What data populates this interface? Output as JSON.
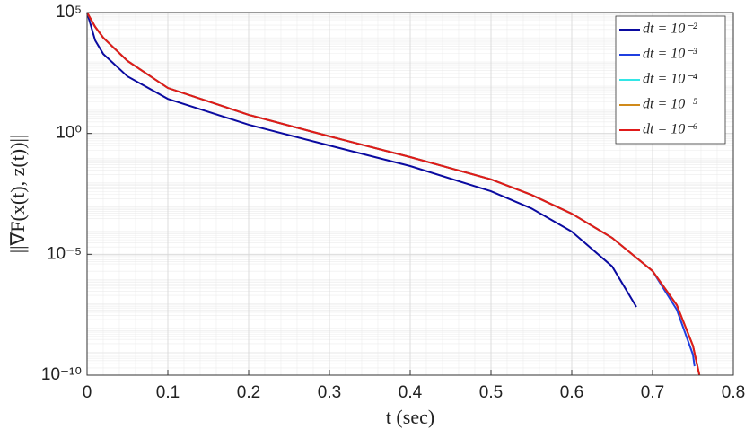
{
  "chart_data": {
    "type": "line",
    "xlabel": "t (sec)",
    "ylabel": "||∇F(x(t), z(t))||",
    "xlim": [
      0,
      0.8
    ],
    "xticks": [
      0,
      0.1,
      0.2,
      0.3,
      0.4,
      0.5,
      0.6,
      0.7,
      0.8
    ],
    "ylim": [
      1e-10,
      100000
    ],
    "yticks": [
      {
        "value": 1e-10,
        "label": "10⁻¹⁰"
      },
      {
        "value": 1e-05,
        "label": "10⁻⁵"
      },
      {
        "value": 1,
        "label": "10⁰"
      },
      {
        "value": 100000,
        "label": "10⁵"
      }
    ],
    "log_y": true,
    "grid": true,
    "minor_grid": true,
    "legend": "top-right",
    "series": [
      {
        "name": "dt = 10⁻²",
        "color": "#0a0aa0",
        "x": [
          0,
          0.01,
          0.02,
          0.05,
          0.1,
          0.2,
          0.3,
          0.4,
          0.5,
          0.55,
          0.6,
          0.65,
          0.68
        ],
        "values": [
          100000,
          7079,
          1950,
          229,
          26.9,
          2.29,
          0.316,
          0.0447,
          0.00407,
          0.000794,
          8.71e-05,
          3.16e-06,
          6.61e-08
        ]
      },
      {
        "name": "dt = 10⁻³",
        "color": "#1f3fe0",
        "x": [
          0,
          0.01,
          0.02,
          0.05,
          0.1,
          0.2,
          0.3,
          0.4,
          0.5,
          0.55,
          0.6,
          0.65,
          0.7,
          0.73,
          0.75,
          0.752
        ],
        "values": [
          100000,
          25700,
          9120,
          1000,
          75.9,
          5.89,
          0.759,
          0.105,
          0.0126,
          0.00288,
          0.000479,
          4.79e-05,
          2.04e-06,
          5.13e-08,
          7.08e-10,
          2.34e-10
        ]
      },
      {
        "name": "dt = 10⁻⁴",
        "color": "#33e6e6",
        "x": [
          0,
          0.01,
          0.02,
          0.05,
          0.1,
          0.2,
          0.3,
          0.4,
          0.5,
          0.55,
          0.6,
          0.65,
          0.7,
          0.73,
          0.75,
          0.758
        ],
        "values": [
          100000,
          25700,
          9120,
          1000,
          75.9,
          5.89,
          0.759,
          0.105,
          0.0126,
          0.00288,
          0.000479,
          4.79e-05,
          2.04e-06,
          7.94e-08,
          1.66e-09,
          1e-10
        ]
      },
      {
        "name": "dt = 10⁻⁵",
        "color": "#d08a1a",
        "x": [
          0,
          0.01,
          0.02,
          0.05,
          0.1,
          0.2,
          0.3,
          0.4,
          0.5,
          0.55,
          0.6,
          0.65,
          0.7,
          0.73,
          0.75,
          0.758
        ],
        "values": [
          100000,
          25700,
          9120,
          1000,
          75.9,
          5.89,
          0.759,
          0.105,
          0.0126,
          0.00288,
          0.000479,
          4.79e-05,
          2.04e-06,
          7.94e-08,
          1.66e-09,
          1e-10
        ]
      },
      {
        "name": "dt = 10⁻⁶",
        "color": "#e01a1a",
        "x": [
          0,
          0.01,
          0.02,
          0.05,
          0.1,
          0.2,
          0.3,
          0.4,
          0.5,
          0.55,
          0.6,
          0.65,
          0.7,
          0.73,
          0.75,
          0.758
        ],
        "values": [
          100000,
          25700,
          9120,
          1000,
          75.9,
          5.89,
          0.759,
          0.105,
          0.0126,
          0.00288,
          0.000479,
          4.79e-05,
          2.04e-06,
          7.94e-08,
          1.66e-09,
          1e-10
        ]
      }
    ]
  }
}
